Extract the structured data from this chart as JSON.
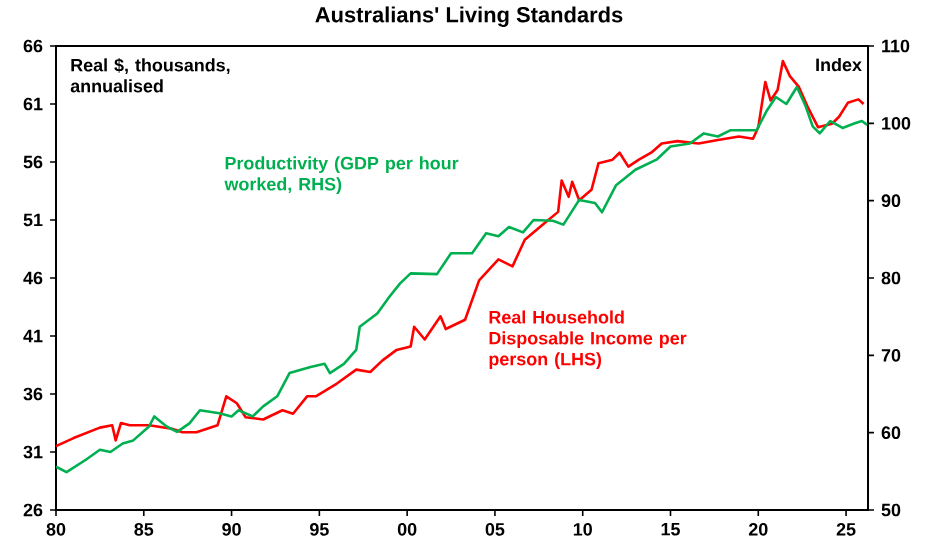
{
  "chart_data": {
    "type": "line",
    "title": "Australians' Living Standards",
    "ylabel": "Real $, thousands, annualised",
    "y2label": "Index",
    "xlim": [
      1980,
      2026.25
    ],
    "xticks": [
      {
        "value": 1980,
        "label": "80"
      },
      {
        "value": 1985,
        "label": "85"
      },
      {
        "value": 1990,
        "label": "90"
      },
      {
        "value": 1995,
        "label": "95"
      },
      {
        "value": 2000,
        "label": "00"
      },
      {
        "value": 2005,
        "label": "05"
      },
      {
        "value": 2010,
        "label": "10"
      },
      {
        "value": 2015,
        "label": "15"
      },
      {
        "value": 2020,
        "label": "20"
      },
      {
        "value": 2025,
        "label": "25"
      }
    ],
    "ylim": [
      26,
      66
    ],
    "yticks": [
      26,
      31,
      36,
      41,
      46,
      51,
      56,
      61,
      66
    ],
    "y2lim": [
      50,
      110
    ],
    "y2ticks": [
      50,
      60,
      70,
      80,
      90,
      100,
      110
    ],
    "series": [
      {
        "name": "Real Household Disposable Income per person (LHS)",
        "color": "#ff0000",
        "x": [
          1980,
          1981,
          1982.5,
          1983.2,
          1983.4,
          1983.7,
          1984.2,
          1985.3,
          1986.6,
          1987.2,
          1988,
          1989.2,
          1989.7,
          1990.3,
          1990.8,
          1991.8,
          1992.9,
          1993.5,
          1994.3,
          1994.8,
          1996,
          1997.1,
          1997.9,
          1998.6,
          1999.4,
          2000.2,
          2000.4,
          2001,
          2001.9,
          2002.2,
          2003.3,
          2004.1,
          2005.2,
          2006,
          2006.7,
          2007.8,
          2008.6,
          2008.8,
          2009.2,
          2009.4,
          2009.8,
          2010.5,
          2010.9,
          2011.7,
          2012.1,
          2012.6,
          2013.2,
          2013.9,
          2014.5,
          2015.4,
          2016.6,
          2017.7,
          2018.9,
          2019.7,
          2020,
          2020.4,
          2020.7,
          2021.1,
          2021.4,
          2021.8,
          2022.3,
          2022.8,
          2023.4,
          2024.2,
          2024.6,
          2025.1,
          2025.7,
          2026
        ],
        "values": [
          31.5,
          32.2,
          33.1,
          33.3,
          32.0,
          33.5,
          33.3,
          33.3,
          33.0,
          32.7,
          32.7,
          33.3,
          35.8,
          35.2,
          34.0,
          33.8,
          34.6,
          34.3,
          35.8,
          35.8,
          36.9,
          38.1,
          37.9,
          38.9,
          39.8,
          40.1,
          41.8,
          40.7,
          42.7,
          41.6,
          42.4,
          45.8,
          47.6,
          47.0,
          49.3,
          50.7,
          51.7,
          54.4,
          53.0,
          54.3,
          52.7,
          53.6,
          55.9,
          56.2,
          56.8,
          55.6,
          56.2,
          56.8,
          57.6,
          57.8,
          57.6,
          57.9,
          58.2,
          58.0,
          59.0,
          62.9,
          61.3,
          62.2,
          64.7,
          63.4,
          62.5,
          60.8,
          59.0,
          59.3,
          59.9,
          61.1,
          61.4,
          61.0
        ]
      },
      {
        "name": "Productivity (GDP per hour worked, RHS)",
        "color": "#00b050",
        "axis": "y2",
        "x": [
          1980,
          1980.6,
          1981.7,
          1982.5,
          1983.1,
          1983.8,
          1984.4,
          1985.3,
          1985.6,
          1986.3,
          1986.9,
          1987.6,
          1988.2,
          1989.3,
          1990,
          1990.4,
          1991.2,
          1991.8,
          1992.6,
          1993.3,
          1994.5,
          1995.3,
          1995.6,
          1996.4,
          1997.1,
          1997.3,
          1998.3,
          1999,
          1999.6,
          2000.2,
          2001.7,
          2002.5,
          2003.3,
          2003.7,
          2004.5,
          2005.2,
          2005.8,
          2006.6,
          2007.2,
          2008.3,
          2008.9,
          2009.8,
          2010.7,
          2011.1,
          2011.9,
          2013,
          2014.2,
          2015,
          2016.1,
          2016.9,
          2017.7,
          2018.4,
          2019.9,
          2020.5,
          2021,
          2021.6,
          2022.2,
          2022.7,
          2023.1,
          2023.5,
          2024.1,
          2024.8,
          2025.5,
          2025.9,
          2026.2
        ],
        "values": [
          55.6,
          54.9,
          56.5,
          57.8,
          57.5,
          58.6,
          59.0,
          60.8,
          62.1,
          60.8,
          60.1,
          61.2,
          62.9,
          62.5,
          62.1,
          62.9,
          62.1,
          63.4,
          64.7,
          67.7,
          68.5,
          68.9,
          67.7,
          68.9,
          70.7,
          73.7,
          75.4,
          77.6,
          79.3,
          80.6,
          80.5,
          83.2,
          83.2,
          83.2,
          85.8,
          85.4,
          86.6,
          85.9,
          87.5,
          87.4,
          86.9,
          90.1,
          89.7,
          88.5,
          92.0,
          94.0,
          95.3,
          97.0,
          97.4,
          98.7,
          98.3,
          99.1,
          99.1,
          101.7,
          103.4,
          102.5,
          104.7,
          102.2,
          99.6,
          98.7,
          100.3,
          99.4,
          100.0,
          100.3,
          99.8
        ]
      }
    ]
  }
}
